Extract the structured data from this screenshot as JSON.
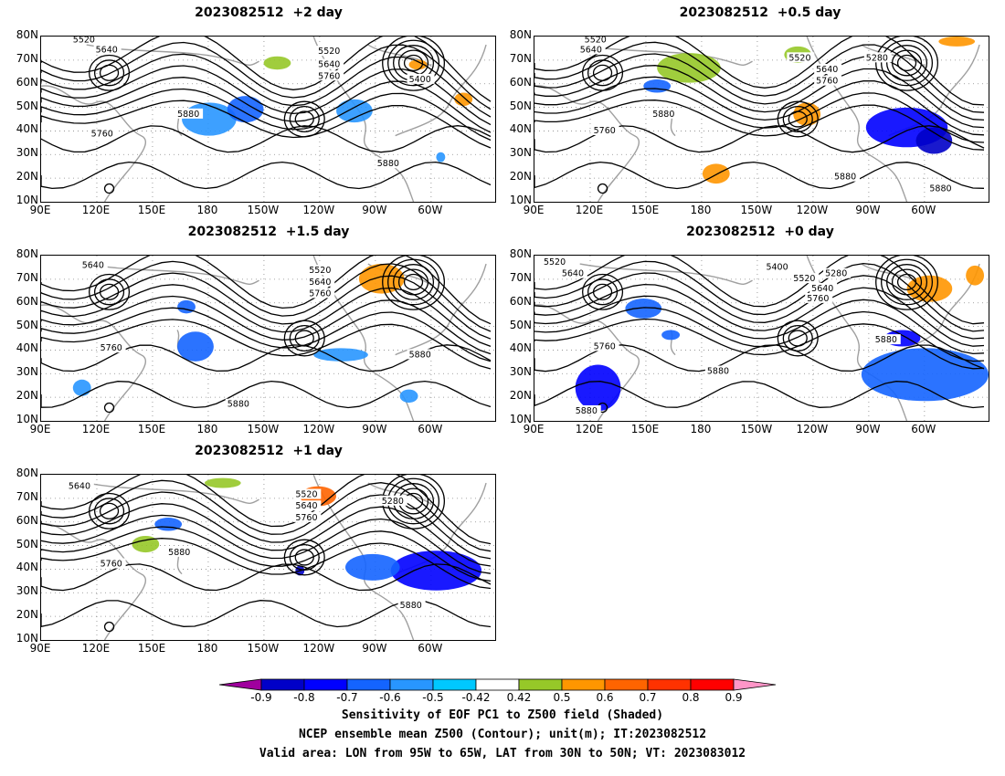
{
  "panels": [
    {
      "title": "2023082512  +2 day",
      "contour_labels": [
        "5520",
        "5640",
        "5520",
        "5640",
        "5760",
        "5400",
        "5880",
        "5760",
        "5880"
      ]
    },
    {
      "title": "2023082512  +0.5 day",
      "contour_labels": [
        "5520",
        "5640",
        "5520",
        "5280",
        "5640",
        "5760",
        "5880",
        "5760",
        "5880",
        "5880"
      ]
    },
    {
      "title": "2023082512  +1.5 day",
      "contour_labels": [
        "5640",
        "5520",
        "5640",
        "5760",
        "5760",
        "5880",
        "5880"
      ]
    },
    {
      "title": "2023082512  +0 day",
      "contour_labels": [
        "5520",
        "5640",
        "5400",
        "5280",
        "5520",
        "5640",
        "5760",
        "5760",
        "5880",
        "5880",
        "5880"
      ]
    },
    {
      "title": "2023082512  +1 day",
      "contour_labels": [
        "5640",
        "5520",
        "5280",
        "5640",
        "5760",
        "5880",
        "5760",
        "5880"
      ]
    }
  ],
  "axes": {
    "lat_ticks": [
      "80N",
      "70N",
      "60N",
      "50N",
      "40N",
      "30N",
      "20N",
      "10N"
    ],
    "lon_ticks": [
      "90E",
      "120E",
      "150E",
      "180",
      "150W",
      "120W",
      "90W",
      "60W"
    ]
  },
  "colorbar": {
    "labels": [
      "-0.9",
      "-0.8",
      "-0.7",
      "-0.6",
      "-0.5",
      "-0.42",
      "0.42",
      "0.5",
      "0.6",
      "0.7",
      "0.8",
      "0.9"
    ],
    "colors": [
      "#a0009e",
      "#0000c8",
      "#0000ff",
      "#1464ff",
      "#2896ff",
      "#00c8ff",
      "#ffffff",
      "#96c828",
      "#ff9600",
      "#ff6400",
      "#ff3200",
      "#ff0000",
      "#ff96c8"
    ]
  },
  "captions": {
    "line1": "Sensitivity of EOF PC1 to Z500 field (Shaded)",
    "line2": "NCEP ensemble mean Z500 (Contour); unit(m); IT:2023082512",
    "line3": "Valid area: LON from 95W to 65W, LAT from 30N to 50N; VT: 2023083012"
  }
}
